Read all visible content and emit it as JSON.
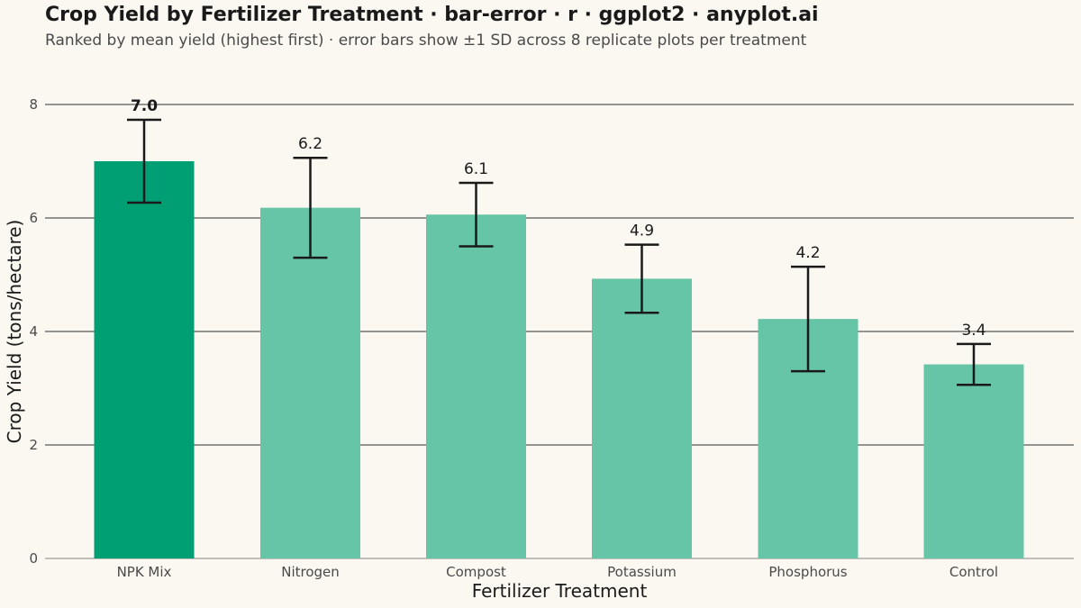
{
  "header": {
    "title": "Crop Yield by Fertilizer Treatment · bar-error · r · ggplot2 · anyplot.ai",
    "subtitle": "Ranked by mean yield (highest first) · error bars show ±1 SD across 8 replicate plots per treatment"
  },
  "colors": {
    "background": "#FAF8F1",
    "highlight_bar": "#009E73",
    "bar": "#66C5A7",
    "error_bar": "#1a1a1a",
    "grid": "#1a1a1a"
  },
  "chart_data": {
    "type": "bar",
    "title": "Crop Yield by Fertilizer Treatment · bar-error · r · ggplot2 · anyplot.ai",
    "subtitle": "Ranked by mean yield (highest first) · error bars show ±1 SD across 8 replicate plots per treatment",
    "xlabel": "Fertilizer Treatment",
    "ylabel": "Crop Yield (tons/hectare)",
    "ylim": [
      0,
      8.4
    ],
    "yticks": [
      0,
      2,
      4,
      6,
      8
    ],
    "grid": "horizontal major",
    "legend": "none",
    "categories": [
      "NPK Mix",
      "Nitrogen",
      "Compost",
      "Potassium",
      "Phosphorus",
      "Control"
    ],
    "values": [
      7.0,
      6.18,
      6.06,
      4.93,
      4.22,
      3.42
    ],
    "sd": [
      0.73,
      0.88,
      0.56,
      0.6,
      0.92,
      0.36
    ],
    "data_labels": [
      "7.0",
      "6.2",
      "6.1",
      "4.9",
      "4.2",
      "3.4"
    ],
    "highlight_index": 0
  }
}
